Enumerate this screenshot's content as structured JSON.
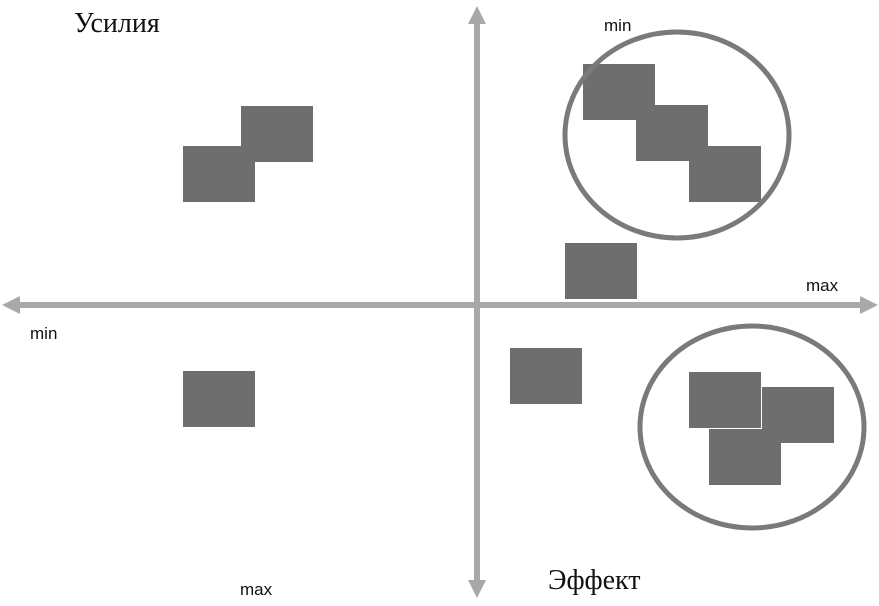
{
  "labels": {
    "efforts": "Усилия",
    "effect": "Эффект",
    "top_min": "min",
    "right_max": "max",
    "left_min": "min",
    "bottom_max": "max"
  },
  "colors": {
    "axis": "#a8a8a8",
    "block": "#6e6e6e",
    "circle": "#7a7a7a",
    "text": "#111111"
  },
  "blocks": {
    "count": 11,
    "groups": [
      {
        "quadrant": "top-left",
        "count": 2
      },
      {
        "quadrant": "top-right",
        "count": 4,
        "circled": 3
      },
      {
        "quadrant": "bottom-left",
        "count": 1
      },
      {
        "quadrant": "bottom-right",
        "count": 4,
        "circled": 3
      }
    ]
  },
  "highlights": {
    "count": 2,
    "quadrants": [
      "top-right",
      "bottom-right"
    ]
  }
}
